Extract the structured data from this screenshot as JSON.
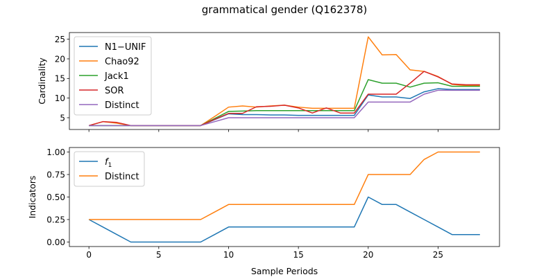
{
  "figure": {
    "title": "grammatical gender (Q162378)"
  },
  "chart_data": [
    {
      "type": "line",
      "ylabel": "Cardinality",
      "xlabel": "",
      "xlim": [
        -1.4,
        29.4
      ],
      "ylim": [
        2.0,
        26.7
      ],
      "xticks": [
        0,
        5,
        10,
        15,
        20,
        25
      ],
      "yticks": [
        5,
        10,
        15,
        20,
        25
      ],
      "show_x_tick_labels": false,
      "legend": "upper-left",
      "x": [
        0,
        1,
        2,
        3,
        4,
        5,
        6,
        7,
        8,
        9,
        10,
        11,
        12,
        13,
        14,
        15,
        16,
        17,
        18,
        19,
        20,
        21,
        22,
        23,
        24,
        25,
        26,
        27,
        28
      ],
      "series": [
        {
          "name": "N1−UNIF",
          "color": "#1f77b4",
          "values": [
            3,
            3,
            3,
            3,
            3,
            3,
            3,
            3,
            3,
            4.5,
            6,
            5.8,
            5.8,
            5.7,
            5.7,
            5.6,
            5.6,
            5.6,
            5.6,
            5.6,
            10.8,
            10.3,
            10.3,
            9.9,
            11.6,
            12.4,
            12.2,
            12.2,
            12.2
          ]
        },
        {
          "name": "Chao92",
          "color": "#ff7f0e",
          "values": [
            3,
            4,
            3.6,
            3,
            3,
            3,
            3,
            3,
            3,
            5.3,
            7.7,
            8.0,
            7.7,
            8.0,
            8.2,
            7.7,
            7.4,
            7.4,
            7.4,
            7.4,
            25.6,
            21.0,
            21.1,
            17.2,
            16.8,
            15.5,
            13.5,
            13.2,
            13.2
          ]
        },
        {
          "name": "Jack1",
          "color": "#2ca02c",
          "values": [
            3,
            3,
            3,
            3,
            3,
            3,
            3,
            3,
            3,
            4.8,
            6.6,
            6.7,
            6.8,
            6.8,
            6.8,
            6.8,
            6.8,
            6.8,
            6.8,
            6.8,
            14.7,
            13.8,
            13.8,
            12.8,
            13.8,
            13.9,
            13.0,
            13.0,
            13.0
          ]
        },
        {
          "name": "SOR",
          "color": "#d62728",
          "values": [
            3,
            4,
            3.8,
            3,
            3,
            3,
            3,
            3,
            3,
            4.6,
            6.1,
            6.1,
            7.8,
            7.9,
            8.2,
            7.5,
            6.2,
            7.5,
            6.2,
            6.2,
            11.0,
            11.0,
            11.0,
            13.8,
            16.8,
            15.4,
            13.6,
            13.4,
            13.4
          ]
        },
        {
          "name": "Distinct",
          "color": "#9467bd",
          "values": [
            3,
            3,
            3,
            3,
            3,
            3,
            3,
            3,
            3,
            4,
            5,
            5,
            5,
            5,
            5,
            5,
            5,
            5,
            5,
            5,
            9,
            9,
            9,
            9,
            11,
            12,
            12,
            12,
            12
          ]
        }
      ]
    },
    {
      "type": "line",
      "ylabel": "Indicators",
      "xlabel": "Sample Periods",
      "xlim": [
        -1.4,
        29.4
      ],
      "ylim": [
        -0.05,
        1.05
      ],
      "xticks": [
        0,
        5,
        10,
        15,
        20,
        25
      ],
      "yticks": [
        0.0,
        0.25,
        0.5,
        0.75,
        1.0
      ],
      "ytick_labels": [
        "0.00",
        "0.25",
        "0.50",
        "0.75",
        "1.00"
      ],
      "show_x_tick_labels": true,
      "legend": "upper-left",
      "x": [
        0,
        1,
        2,
        3,
        4,
        5,
        6,
        7,
        8,
        9,
        10,
        11,
        12,
        13,
        14,
        15,
        16,
        17,
        18,
        19,
        20,
        21,
        22,
        23,
        24,
        25,
        26,
        27,
        28
      ],
      "series": [
        {
          "name": "f1",
          "name_base": "f",
          "name_sub": "1",
          "color": "#1f77b4",
          "values": [
            0.25,
            0.167,
            0.083,
            0,
            0,
            0,
            0,
            0,
            0,
            0.083,
            0.167,
            0.167,
            0.167,
            0.167,
            0.167,
            0.167,
            0.167,
            0.167,
            0.167,
            0.167,
            0.5,
            0.417,
            0.417,
            0.333,
            0.25,
            0.167,
            0.083,
            0.083,
            0.083
          ]
        },
        {
          "name": "Distinct",
          "color": "#ff7f0e",
          "values": [
            0.25,
            0.25,
            0.25,
            0.25,
            0.25,
            0.25,
            0.25,
            0.25,
            0.25,
            0.333,
            0.417,
            0.417,
            0.417,
            0.417,
            0.417,
            0.417,
            0.417,
            0.417,
            0.417,
            0.417,
            0.75,
            0.75,
            0.75,
            0.75,
            0.917,
            1.0,
            1.0,
            1.0,
            1.0
          ]
        }
      ]
    }
  ]
}
